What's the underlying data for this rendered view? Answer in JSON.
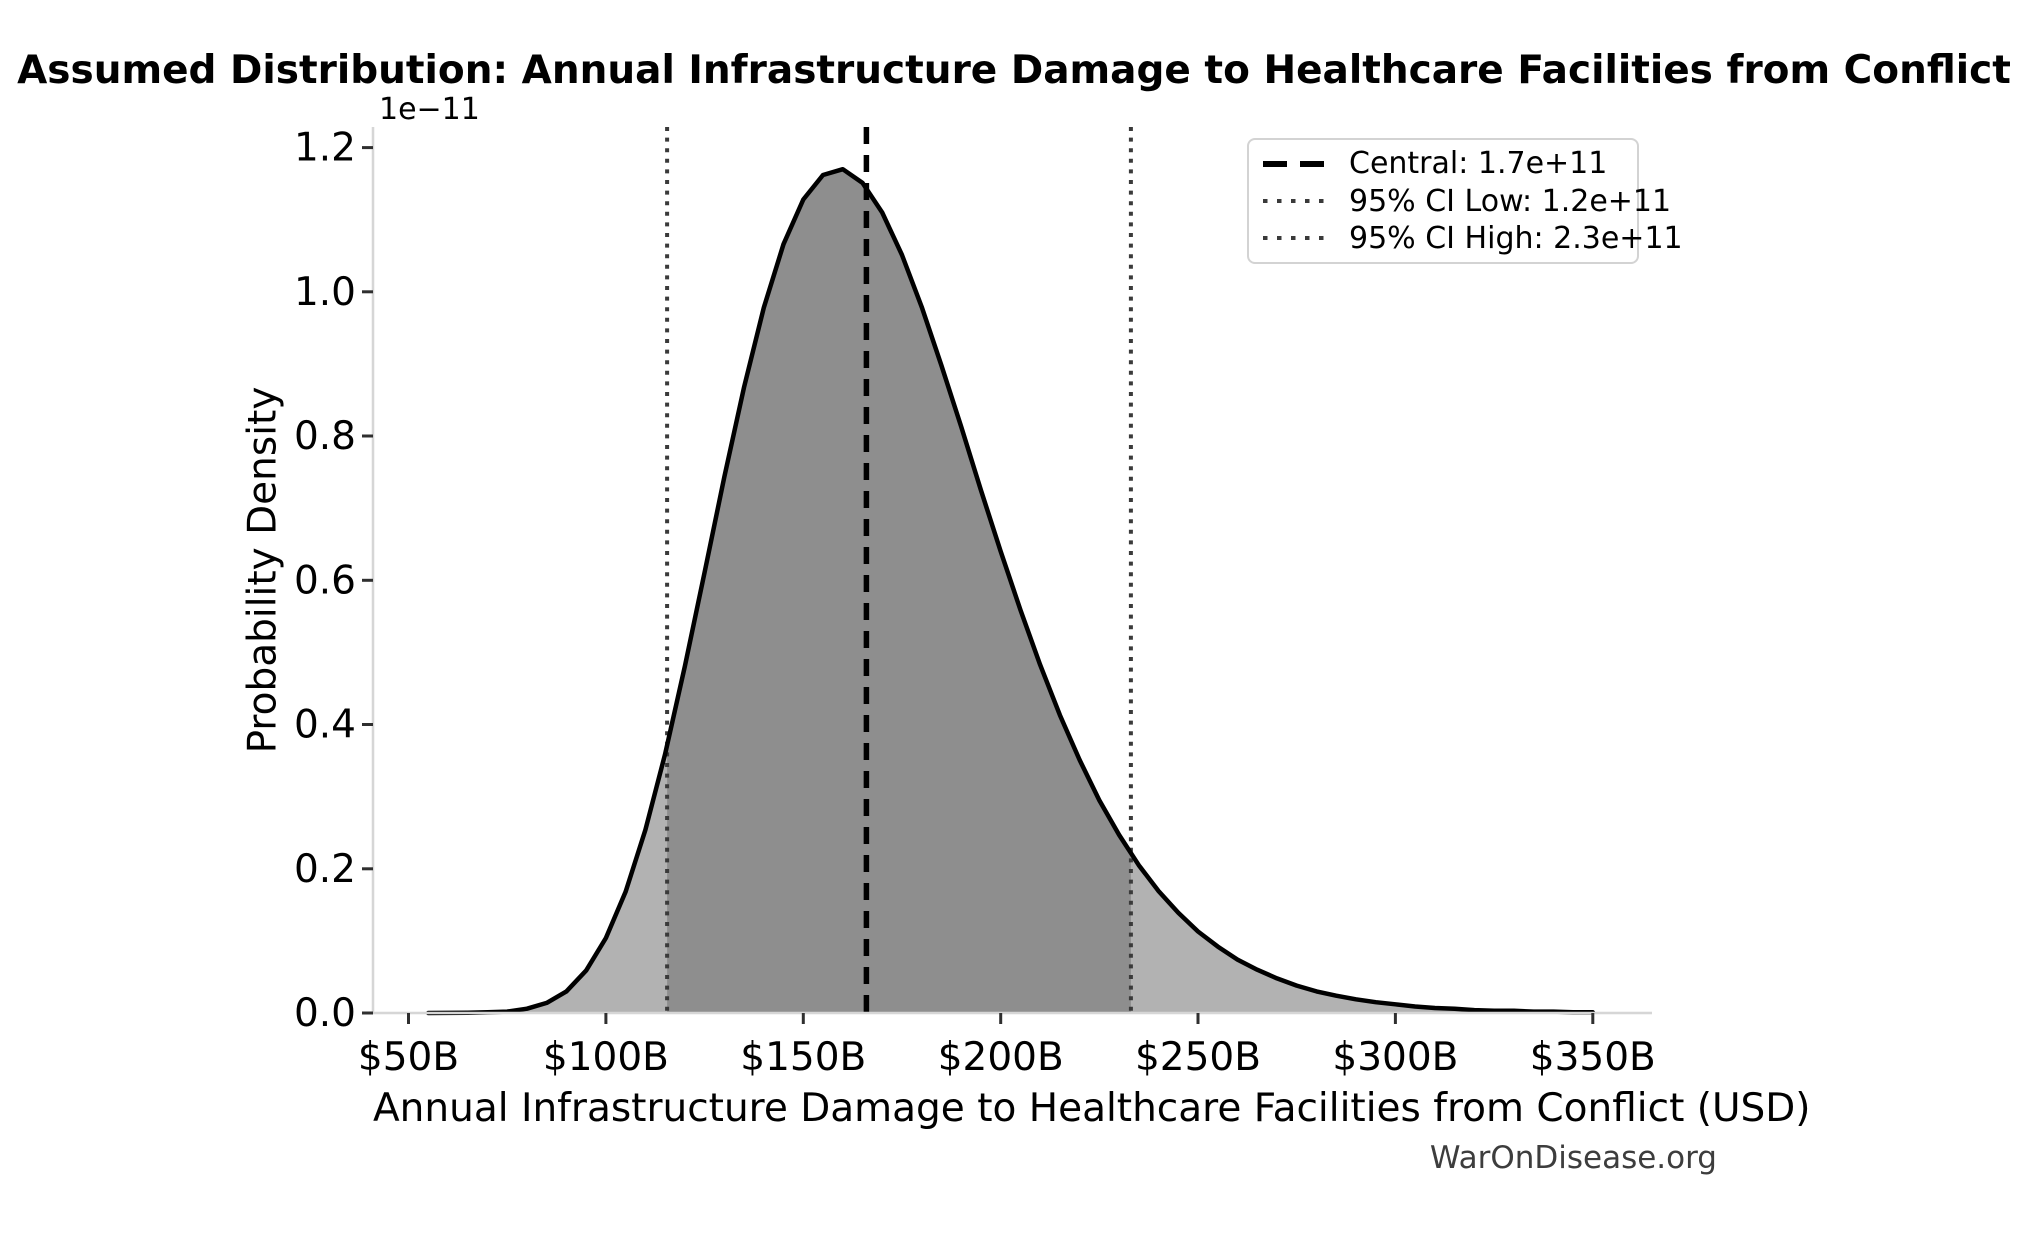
{
  "page": {
    "background": "#ffffff"
  },
  "watermark": {
    "text": "WarOnDisease.org",
    "color": "#3d3d3d"
  },
  "legend": {
    "position": "top-right",
    "items": [
      {
        "label": "Central: 1.7e+11",
        "style": "dashed",
        "color": "#000000"
      },
      {
        "label": "95% CI Low: 1.2e+11",
        "style": "dotted",
        "color": "#3a3a3a"
      },
      {
        "label": "95% CI High: 2.3e+11",
        "style": "dotted",
        "color": "#3a3a3a"
      }
    ]
  },
  "chart_data": {
    "type": "area",
    "title": "Assumed Distribution: Annual Infrastructure Damage to Healthcare Facilities from Conflict",
    "xlabel": "Annual Infrastructure Damage to Healthcare Facilities from Conflict (USD)",
    "ylabel": "Probability Density",
    "y_scale_offset_label": "1e−11",
    "x_units": "billions of USD",
    "y_units": "probability density × 1e-11",
    "grid": false,
    "legend_position": "upper right",
    "xlim": [
      41,
      365
    ],
    "ylim": [
      0,
      1.2285
    ],
    "x_tick_values": [
      50,
      100,
      150,
      200,
      250,
      300,
      350
    ],
    "x_tick_labels": [
      "$50B",
      "$100B",
      "$150B",
      "$200B",
      "$250B",
      "$300B",
      "$350B"
    ],
    "y_tick_values": [
      0.0,
      0.2,
      0.4,
      0.6,
      0.8,
      1.0,
      1.2
    ],
    "y_tick_labels": [
      "0.0",
      "0.2",
      "0.4",
      "0.6",
      "0.8",
      "1.0",
      "1.2"
    ],
    "curve": {
      "x": [
        55,
        60,
        65,
        70,
        75,
        80,
        85,
        90,
        95,
        100,
        105,
        110,
        115,
        120,
        125,
        130,
        135,
        140,
        145,
        150,
        155,
        160,
        165,
        170,
        175,
        180,
        185,
        190,
        195,
        200,
        205,
        210,
        215,
        220,
        225,
        230,
        235,
        240,
        245,
        250,
        255,
        260,
        265,
        270,
        275,
        280,
        285,
        290,
        295,
        300,
        305,
        310,
        315,
        320,
        325,
        330,
        335,
        340,
        345,
        350
      ],
      "y": [
        0,
        0.0001,
        0.0004,
        0.001,
        0.002,
        0.006,
        0.014,
        0.03,
        0.059,
        0.104,
        0.168,
        0.254,
        0.359,
        0.481,
        0.611,
        0.743,
        0.868,
        0.978,
        1.066,
        1.128,
        1.162,
        1.17,
        1.151,
        1.11,
        1.051,
        0.979,
        0.898,
        0.813,
        0.725,
        0.64,
        0.559,
        0.483,
        0.413,
        0.351,
        0.295,
        0.247,
        0.205,
        0.169,
        0.139,
        0.113,
        0.092,
        0.074,
        0.06,
        0.048,
        0.038,
        0.03,
        0.024,
        0.019,
        0.015,
        0.012,
        0.009,
        0.007,
        0.006,
        0.004,
        0.003,
        0.003,
        0.002,
        0.002,
        0.001,
        0.001
      ]
    },
    "peak": {
      "x": 158,
      "y": 1.17
    },
    "central": {
      "value_billions": 166,
      "display": "1.7e+11",
      "legend_label": "Central: 1.7e+11"
    },
    "ci_low": {
      "value_billions": 115.5,
      "display": "1.2e+11",
      "legend_label": "95% CI Low: 1.2e+11"
    },
    "ci_high": {
      "value_billions": 233,
      "display": "2.3e+11",
      "legend_label": "95% CI High: 2.3e+11"
    },
    "colors": {
      "curve": "#000000",
      "fill_outer": "#b2b2b2",
      "fill_ci": "#8e8e8e",
      "central_line": "#000000",
      "ci_line": "#3a3a3a",
      "spine": "#d6d6d6",
      "tick": "#2f2f2f",
      "text": "#000000"
    }
  }
}
